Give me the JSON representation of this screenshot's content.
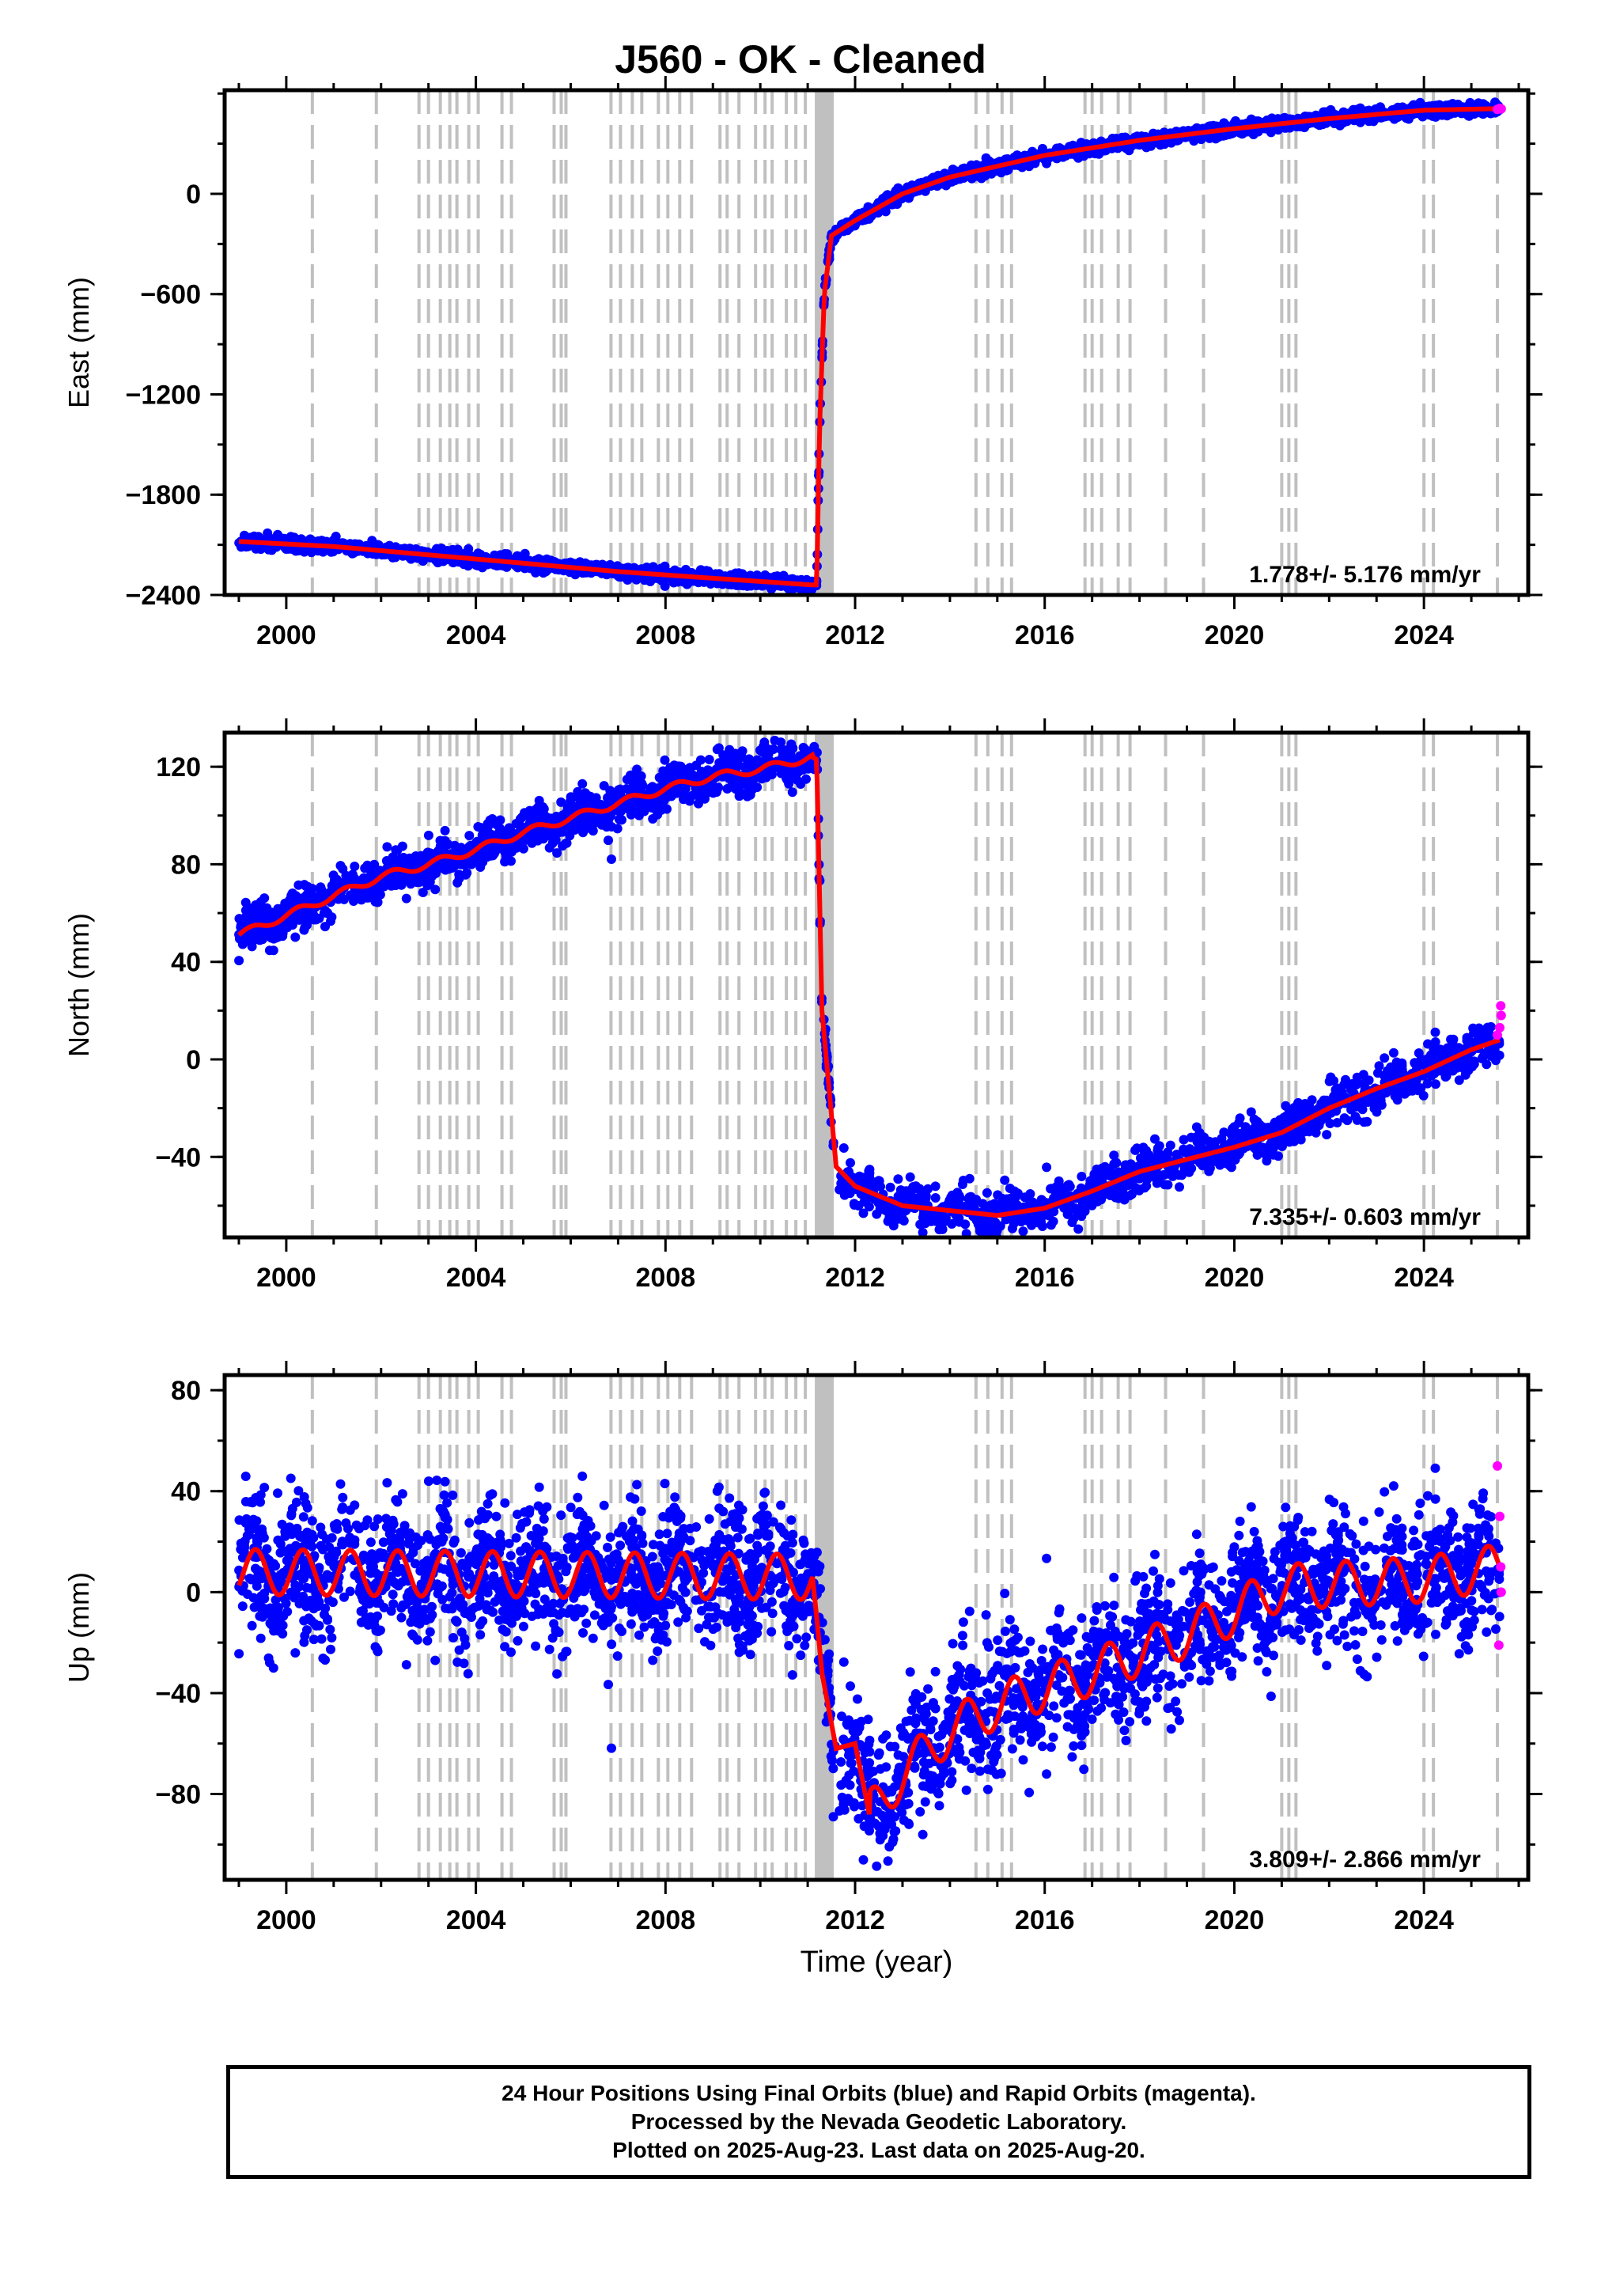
{
  "title": "J560  - OK - Cleaned",
  "footer": {
    "line1": "24 Hour Positions Using Final Orbits (blue) and Rapid Orbits (magenta).",
    "line2": "Processed by the Nevada Geodetic Laboratory.",
    "line3": "Plotted on 2025-Aug-23. Last data on 2025-Aug-20."
  },
  "colors": {
    "final_orbits": "#0000ff",
    "rapid_orbits": "#ff00ff",
    "model": "#ff0000",
    "event_lines": "#c0c0c0"
  },
  "chart_data": [
    {
      "type": "scatter",
      "ylabel": "East (mm)",
      "xlabel": "",
      "xlim": [
        1998.7,
        2026.2
      ],
      "ylim": [
        -2400,
        620
      ],
      "x_ticks": [
        2000,
        2004,
        2008,
        2012,
        2016,
        2020,
        2024
      ],
      "y_ticks": [
        -2400,
        -1800,
        -1200,
        -600,
        0
      ],
      "rate_label": "1.778+/- 5.176 mm/yr",
      "model_series": {
        "x": [
          1999.0,
          2001.0,
          2003.0,
          2005.0,
          2007.0,
          2009.0,
          2011.1,
          2011.19,
          2011.25,
          2011.35,
          2011.5,
          2012.0,
          2013.0,
          2014.0,
          2016.0,
          2018.0,
          2020.0,
          2022.0,
          2024.0,
          2025.6
        ],
        "y": [
          -2080,
          -2110,
          -2160,
          -2210,
          -2260,
          -2300,
          -2340,
          -2340,
          -1400,
          -600,
          -250,
          -160,
          0,
          100,
          230,
          320,
          390,
          450,
          500,
          510
        ]
      },
      "rapid_points": {
        "x": [
          2025.55,
          2025.6,
          2025.63
        ],
        "y": [
          505,
          512,
          508
        ]
      }
    },
    {
      "type": "scatter",
      "ylabel": "North (mm)",
      "xlabel": "",
      "xlim": [
        1998.7,
        2026.2
      ],
      "ylim": [
        -73,
        134
      ],
      "x_ticks": [
        2000,
        2004,
        2008,
        2012,
        2016,
        2020,
        2024
      ],
      "y_ticks": [
        -40,
        0,
        40,
        80,
        120
      ],
      "rate_label": "7.335+/- 0.603 mm/yr",
      "model_series": {
        "x": [
          1999.0,
          2000.0,
          2001.0,
          2002.0,
          2003.0,
          2004.0,
          2005.0,
          2006.0,
          2007.0,
          2008.0,
          2009.0,
          2010.0,
          2011.1,
          2011.19,
          2011.3,
          2011.6,
          2012.0,
          2013.0,
          2014.0,
          2015.0,
          2016.0,
          2017.0,
          2018.0,
          2019.0,
          2020.0,
          2021.0,
          2022.0,
          2023.0,
          2024.0,
          2025.0,
          2025.6
        ],
        "y": [
          51,
          59,
          67,
          75,
          80,
          86,
          93,
          99,
          105,
          111,
          116,
          119,
          124,
          123,
          20,
          -44,
          -52,
          -60,
          -62,
          -64,
          -61,
          -54,
          -46,
          -41,
          -36,
          -30,
          -20,
          -12,
          -5,
          4,
          8
        ]
      },
      "rapid_points": {
        "x": [
          2025.55,
          2025.6,
          2025.63,
          2025.62
        ],
        "y": [
          10,
          13,
          18,
          22
        ]
      }
    },
    {
      "type": "scatter",
      "ylabel": "Up (mm)",
      "xlabel": "Time (year)",
      "xlim": [
        1998.7,
        2026.2
      ],
      "ylim": [
        -114,
        86
      ],
      "x_ticks": [
        2000,
        2004,
        2008,
        2012,
        2016,
        2020,
        2024
      ],
      "y_ticks": [
        -80,
        -40,
        0,
        40,
        80
      ],
      "rate_label": "3.809+/- 2.866 mm/yr",
      "model_series": {
        "x": [
          1999.0,
          2011.1,
          2011.19,
          2011.3,
          2011.6,
          2012.0,
          2012.3,
          2013.0,
          2014.0,
          2015.0,
          2016.0,
          2017.0,
          2018.0,
          2019.0,
          2020.0,
          2021.0,
          2022.0,
          2023.0,
          2024.0,
          2025.6
        ],
        "y": [
          8,
          6,
          -10,
          -32,
          -62,
          -60,
          -88,
          -72,
          -55,
          -45,
          -38,
          -32,
          -24,
          -17,
          -8,
          2,
          3,
          4,
          5,
          10
        ]
      },
      "rapid_points": {
        "x": [
          2025.55,
          2025.6,
          2025.62,
          2025.63,
          2025.58
        ],
        "y": [
          50,
          30,
          10,
          0,
          -21
        ]
      }
    }
  ]
}
